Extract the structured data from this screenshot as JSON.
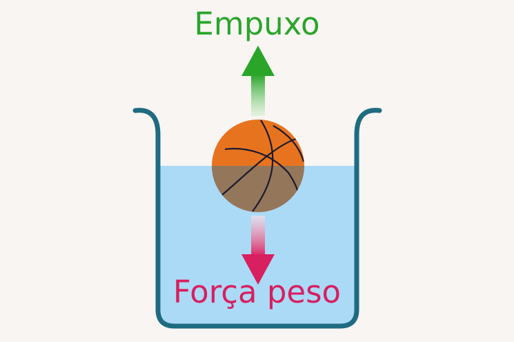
{
  "labels": {
    "buoyancy": "Empuxo",
    "weight": "Força peso"
  },
  "colors": {
    "background": "#f8f5f3",
    "buoyancy": "#2aa52a",
    "buoyancy_light": "#d9f0d4",
    "weight": "#d81f5f",
    "weight_light": "#fbe1e9",
    "container": "#1f6b80",
    "water": "#abdaf7",
    "ball": "#e8731f",
    "ball_submerged": "#94765a",
    "ball_seams": "#1a1a2e"
  }
}
